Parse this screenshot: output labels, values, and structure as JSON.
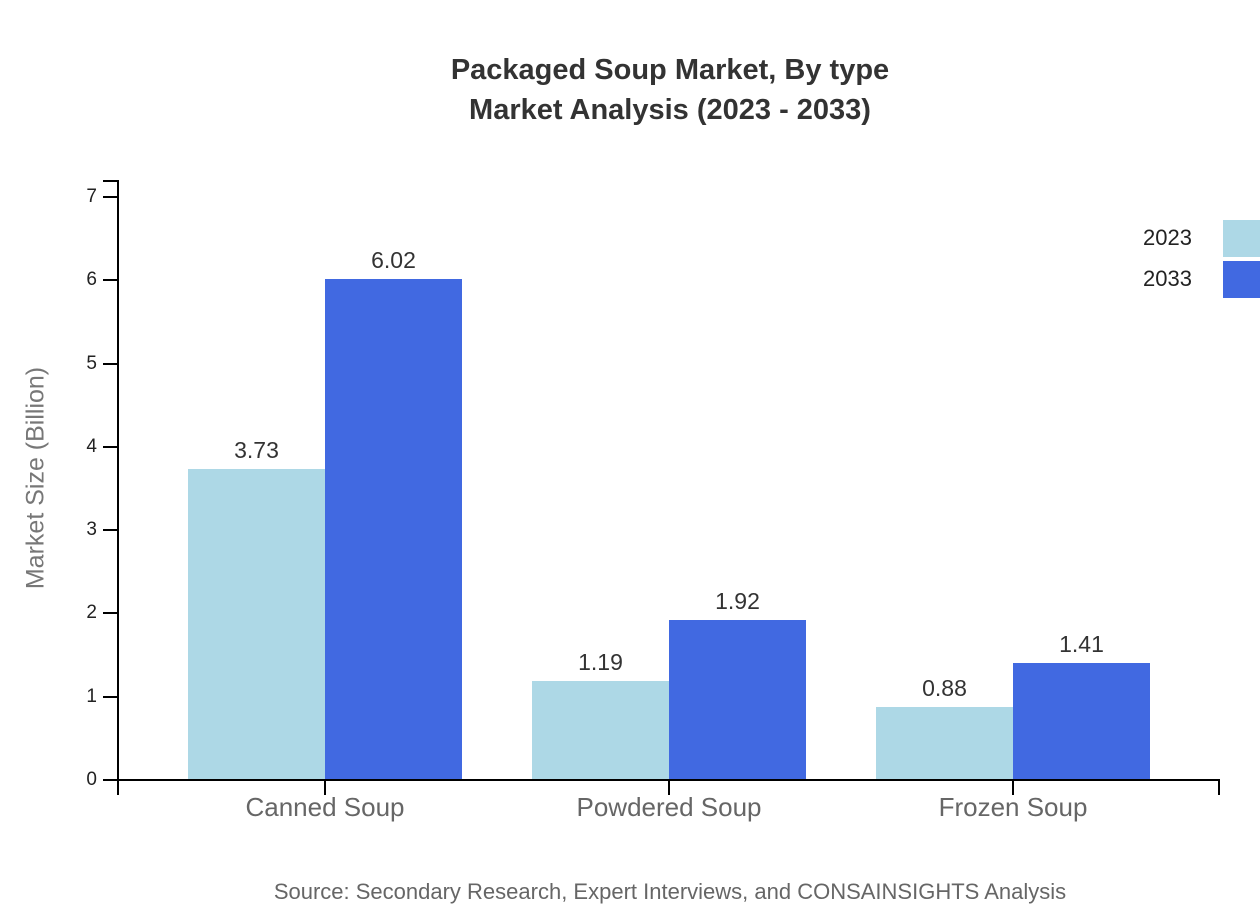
{
  "title": {
    "line1": "Packaged Soup Market, By type",
    "line2": "Market Analysis (2023 - 2033)"
  },
  "chart_data": {
    "type": "bar",
    "title": "Packaged Soup Market, By type Market Analysis (2023 - 2033)",
    "categories": [
      "Canned Soup",
      "Powdered Soup",
      "Frozen Soup"
    ],
    "series": [
      {
        "name": "2023",
        "color": "#ADD8E6",
        "values": [
          3.73,
          1.19,
          0.88
        ]
      },
      {
        "name": "2033",
        "color": "#4169E1",
        "values": [
          6.02,
          1.92,
          1.41
        ]
      }
    ],
    "xlabel": "",
    "ylabel": "Market Size (Billion)",
    "ylim": [
      0,
      7
    ],
    "yticks": [
      0,
      1,
      2,
      3,
      4,
      5,
      6,
      7
    ],
    "grid": false,
    "legend_position": "right",
    "value_labels": true
  },
  "source": {
    "text": "Source: Secondary Research, Expert Interviews, and CONSAINSIGHTS Analysis"
  },
  "colors": {
    "background": "#ffffff",
    "axis": "#000000",
    "title_text": "#333333",
    "tick_label": "#222222",
    "category_label": "#666666",
    "axis_title": "#777777",
    "value_label": "#333333",
    "source_text": "#666666",
    "legend_label": "#222222"
  }
}
